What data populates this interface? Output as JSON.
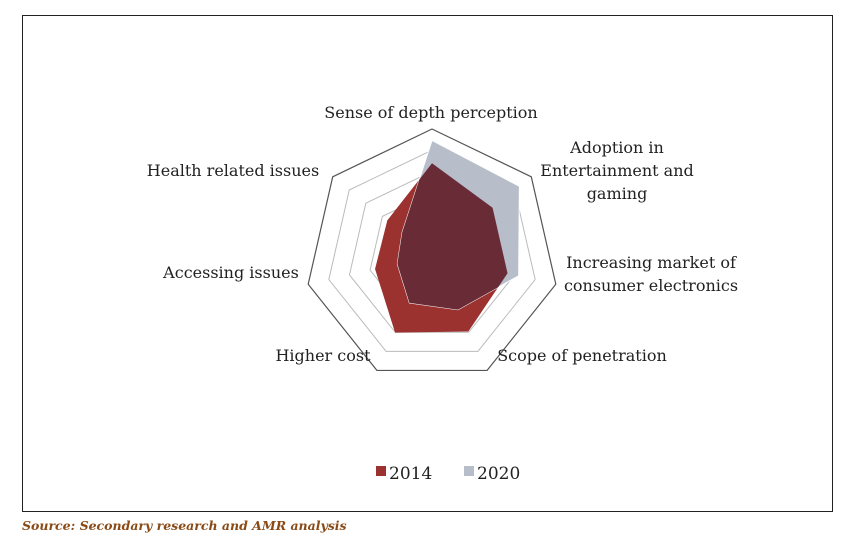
{
  "chart_data": {
    "type": "radar",
    "title": "",
    "axes": [
      [
        "Sense of depth perception"
      ],
      [
        "Adoption in",
        "Entertainment and",
        "gaming"
      ],
      [
        "Increasing market of",
        "consumer electronics"
      ],
      [
        "Scope of penetration"
      ],
      [
        "Higher cost"
      ],
      [
        "Accessing issues"
      ],
      [
        "Health related issues"
      ]
    ],
    "range": [
      0,
      10
    ],
    "rings": 6,
    "series": [
      {
        "name": "2014",
        "values": [
          7.3,
          6.1,
          6.1,
          6.6,
          6.7,
          4.6,
          4.5
        ],
        "color": "#9b3230"
      },
      {
        "name": "2020",
        "values": [
          9.1,
          8.8,
          7.0,
          4.7,
          4.1,
          2.8,
          3.0
        ],
        "color": "#b7bdc9"
      }
    ],
    "overlap_color": "#692c37",
    "legend": "bottom"
  },
  "source": "Source: Secondary research and AMR analysis"
}
